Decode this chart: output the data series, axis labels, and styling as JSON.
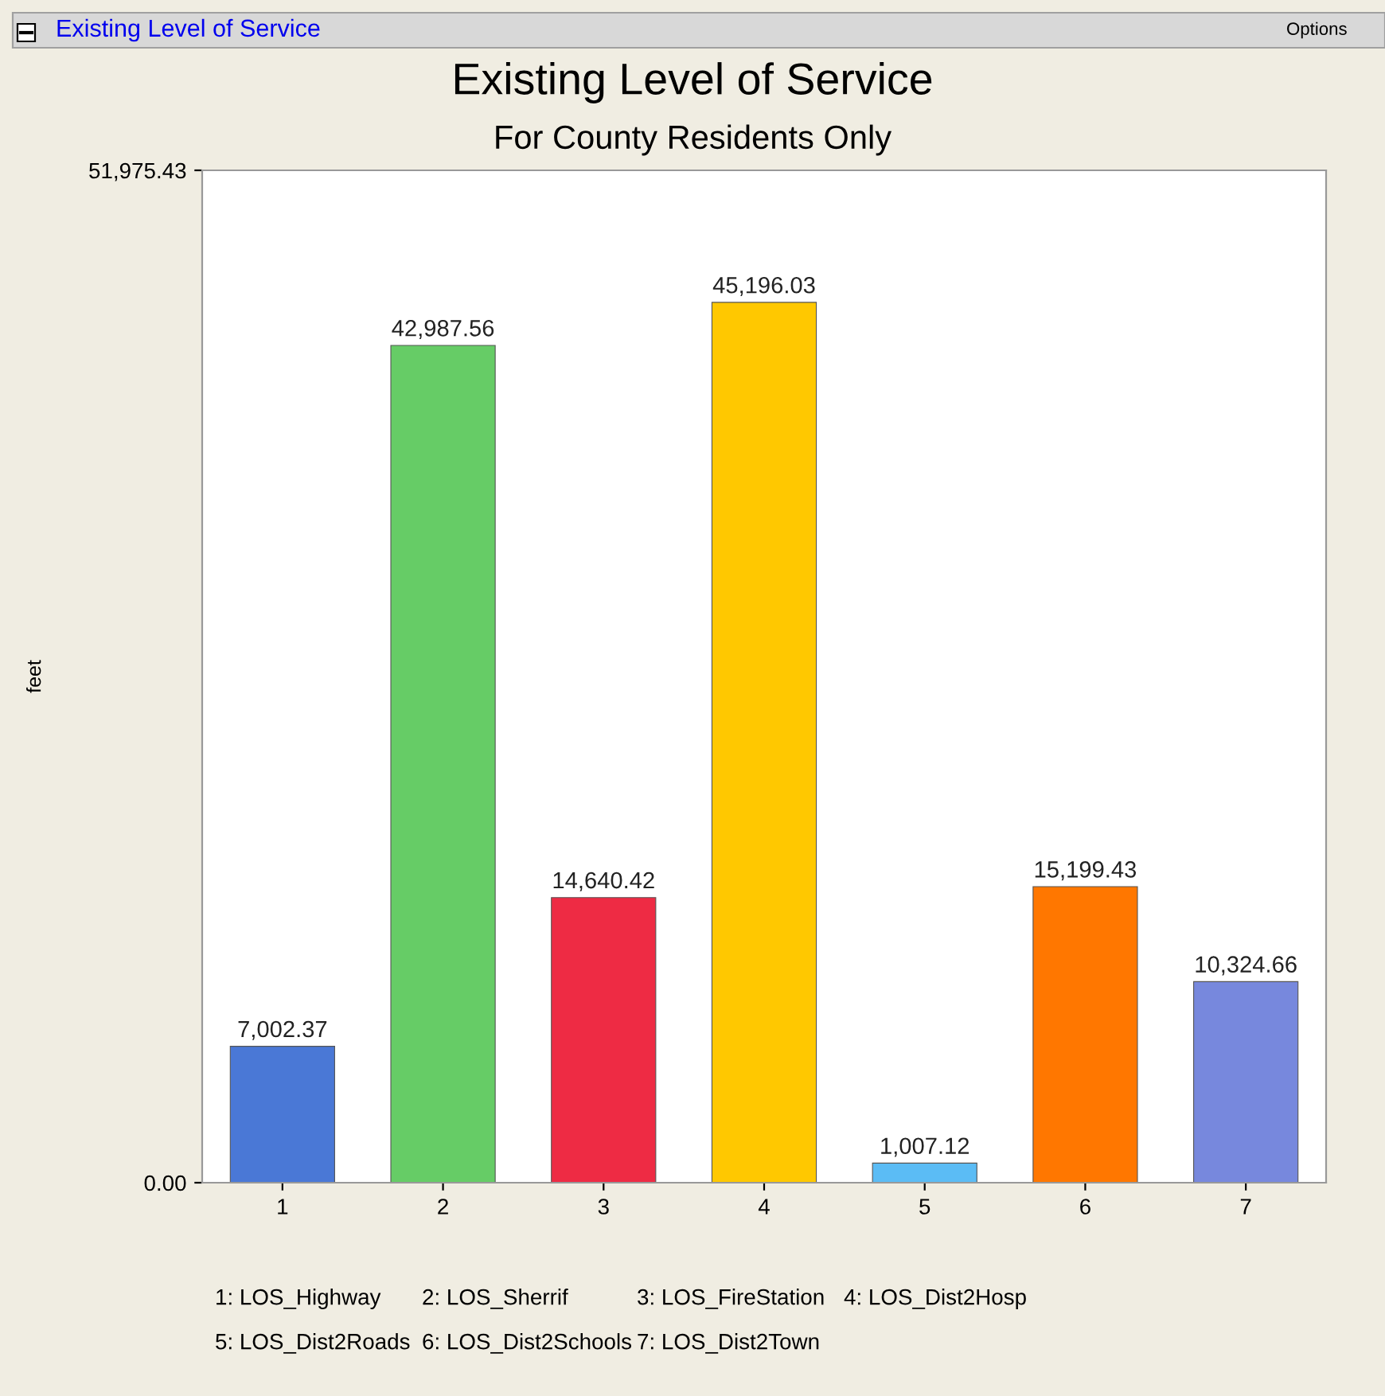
{
  "chart_data": {
    "type": "bar",
    "title": "Existing Level of Service",
    "subtitle": "For County Residents Only",
    "ylabel": "feet",
    "categories": [
      "1",
      "2",
      "3",
      "4",
      "5",
      "6",
      "7"
    ],
    "values": [
      7002.37,
      42987.56,
      14640.42,
      45196.03,
      1007.12,
      15199.43,
      10324.66
    ],
    "colors": [
      "#4a78d6",
      "#66cc66",
      "#ee2b44",
      "#ffc800",
      "#5bbcf5",
      "#ff7700",
      "#7788dd"
    ],
    "value_labels": [
      "7,002.37",
      "42,987.56",
      "14,640.42",
      "45,196.03",
      "1,007.12",
      "15,199.43",
      "10,324.66"
    ],
    "ylim": [
      0,
      51975.43
    ],
    "yticks": [
      {
        "value": 0,
        "label": "0.00"
      },
      {
        "value": 51975.43,
        "label": "51,975.43"
      }
    ],
    "grid": false,
    "annotations": [
      "Existing Level of Service",
      "Options",
      "1: LOS_Highway",
      "2: LOS_Sherrif",
      "3: LOS_FireStation",
      "4: LOS_Dist2Hosp",
      "5: LOS_Dist2Roads",
      "6: LOS_Dist2Schools",
      "7: LOS_Dist2Town"
    ]
  }
}
